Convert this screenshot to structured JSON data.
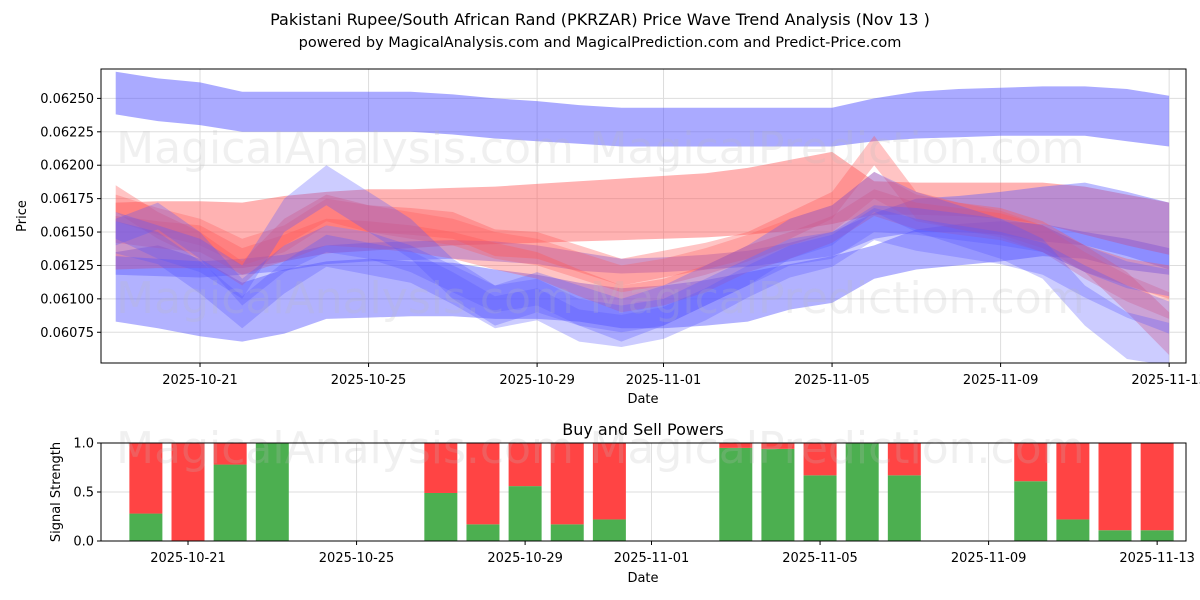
{
  "title": "Pakistani Rupee/South African Rand (PKRZAR) Price Wave Trend Analysis (Nov 13 )",
  "subtitle": "powered by MagicalAnalysis.com and MagicalPrediction.com and Predict-Price.com",
  "watermarks": [
    "MagicalAnalysis.com",
    "MagicalPrediction.com"
  ],
  "colors": {
    "blue": "#5555ff",
    "red": "#ff5555",
    "buy": "#4caf50",
    "sell": "#ff4444",
    "grid": "#dddddd"
  },
  "chart_data": [
    {
      "type": "area",
      "name": "price-wave-chart",
      "xlabel": "Date",
      "ylabel": "Price",
      "x": [
        "2025-10-19",
        "2025-10-20",
        "2025-10-21",
        "2025-10-22",
        "2025-10-23",
        "2025-10-24",
        "2025-10-25",
        "2025-10-26",
        "2025-10-27",
        "2025-10-28",
        "2025-10-29",
        "2025-10-30",
        "2025-10-31",
        "2025-11-01",
        "2025-11-02",
        "2025-11-03",
        "2025-11-04",
        "2025-11-05",
        "2025-11-06",
        "2025-11-07",
        "2025-11-08",
        "2025-11-09",
        "2025-11-10",
        "2025-11-11",
        "2025-11-12",
        "2025-11-13"
      ],
      "xtick_labels": [
        "2025-10-21",
        "2025-10-25",
        "2025-10-29",
        "2025-11-01",
        "2025-11-05",
        "2025-11-09",
        "2025-11-13"
      ],
      "ytick_labels": [
        "0.06075",
        "0.06100",
        "0.06125",
        "0.06150",
        "0.06175",
        "0.06200",
        "0.06225",
        "0.06250"
      ],
      "ylim": [
        0.06052,
        0.06272
      ],
      "x_range_days": [
        -0.35,
        25.4
      ],
      "series": [
        {
          "name": "top-band",
          "color": "blue",
          "opacity": 0.5,
          "upper": [
            0.0627,
            0.06265,
            0.06262,
            0.06255,
            0.06255,
            0.06255,
            0.06255,
            0.06255,
            0.06253,
            0.0625,
            0.06248,
            0.06245,
            0.06243,
            0.06243,
            0.06243,
            0.06243,
            0.06243,
            0.06243,
            0.0625,
            0.06255,
            0.06257,
            0.06258,
            0.06259,
            0.06259,
            0.06257,
            0.06252
          ],
          "lower": [
            0.06238,
            0.06233,
            0.0623,
            0.06225,
            0.06225,
            0.06225,
            0.06225,
            0.06225,
            0.06223,
            0.0622,
            0.06218,
            0.06216,
            0.06214,
            0.06214,
            0.06214,
            0.06214,
            0.06214,
            0.06214,
            0.06218,
            0.0622,
            0.06221,
            0.06222,
            0.06222,
            0.06222,
            0.06218,
            0.06214
          ]
        },
        {
          "name": "wide-lower-band",
          "color": "blue",
          "opacity": 0.45,
          "upper": [
            0.06135,
            0.0614,
            0.0613,
            0.06112,
            0.06122,
            0.06128,
            0.0613,
            0.06128,
            0.06127,
            0.06122,
            0.06118,
            0.06112,
            0.06108,
            0.0611,
            0.06114,
            0.0612,
            0.06126,
            0.06132,
            0.0614,
            0.06152,
            0.06156,
            0.06158,
            0.06156,
            0.0615,
            0.06145,
            0.06138
          ],
          "lower": [
            0.06083,
            0.06078,
            0.06072,
            0.06068,
            0.06074,
            0.06085,
            0.06086,
            0.06087,
            0.06087,
            0.06085,
            0.06085,
            0.06083,
            0.06078,
            0.06078,
            0.0608,
            0.06083,
            0.06092,
            0.06097,
            0.06115,
            0.06122,
            0.06125,
            0.06128,
            0.06132,
            0.0613,
            0.06122,
            0.06118
          ]
        },
        {
          "name": "wide-red-band",
          "color": "red",
          "opacity": 0.45,
          "upper": [
            0.06172,
            0.06173,
            0.06173,
            0.06172,
            0.06177,
            0.0618,
            0.06182,
            0.06182,
            0.06183,
            0.06184,
            0.06186,
            0.06188,
            0.0619,
            0.06192,
            0.06194,
            0.06198,
            0.06204,
            0.0621,
            0.06188,
            0.06187,
            0.06187,
            0.06187,
            0.06187,
            0.06184,
            0.06178,
            0.06172
          ],
          "lower": [
            0.06122,
            0.06123,
            0.06123,
            0.06123,
            0.06128,
            0.06134,
            0.06136,
            0.06138,
            0.0614,
            0.06141,
            0.06142,
            0.06143,
            0.06144,
            0.06145,
            0.06146,
            0.06148,
            0.06151,
            0.06156,
            0.06163,
            0.06163,
            0.06162,
            0.0616,
            0.06156,
            0.06148,
            0.0614,
            0.06133
          ]
        },
        {
          "name": "purple-trend-band",
          "color": "blue",
          "opacity": 0.4,
          "upper": [
            0.06132,
            0.0613,
            0.06128,
            0.0613,
            0.06133,
            0.0614,
            0.06142,
            0.06143,
            0.06144,
            0.06143,
            0.0614,
            0.06135,
            0.0613,
            0.06131,
            0.06133,
            0.06136,
            0.06142,
            0.0615,
            0.06164,
            0.06175,
            0.06177,
            0.0618,
            0.06184,
            0.06187,
            0.0618,
            0.06172
          ],
          "lower": [
            0.06118,
            0.06117,
            0.06116,
            0.06118,
            0.06121,
            0.06126,
            0.06128,
            0.06129,
            0.0613,
            0.06128,
            0.06126,
            0.06121,
            0.06119,
            0.0612,
            0.06122,
            0.06124,
            0.06128,
            0.06132,
            0.06145,
            0.0615,
            0.0615,
            0.06148,
            0.06143,
            0.0614,
            0.06132,
            0.06122
          ]
        },
        {
          "name": "red-wave-1",
          "color": "red",
          "opacity": 0.35,
          "upper": [
            0.06185,
            0.06165,
            0.0615,
            0.06128,
            0.0616,
            0.06178,
            0.0617,
            0.06168,
            0.06165,
            0.06152,
            0.0615,
            0.0614,
            0.0613,
            0.06136,
            0.06142,
            0.0615,
            0.06165,
            0.0618,
            0.06222,
            0.0618,
            0.06172,
            0.06168,
            0.06158,
            0.0614,
            0.0612,
            0.0609
          ],
          "lower": [
            0.06165,
            0.06145,
            0.0613,
            0.0611,
            0.0614,
            0.06158,
            0.0615,
            0.06148,
            0.06145,
            0.06132,
            0.0613,
            0.0612,
            0.0611,
            0.06116,
            0.06122,
            0.0613,
            0.06145,
            0.0616,
            0.062,
            0.0616,
            0.06152,
            0.06148,
            0.06138,
            0.0612,
            0.0609,
            0.06058
          ]
        },
        {
          "name": "red-wave-2",
          "color": "red",
          "opacity": 0.35,
          "upper": [
            0.06162,
            0.06158,
            0.06155,
            0.06138,
            0.06148,
            0.0616,
            0.06158,
            0.06155,
            0.0615,
            0.06142,
            0.06135,
            0.06122,
            0.0611,
            0.06115,
            0.06125,
            0.0614,
            0.0615,
            0.06162,
            0.06182,
            0.06172,
            0.06168,
            0.06164,
            0.06155,
            0.0614,
            0.0613,
            0.06125
          ],
          "lower": [
            0.06142,
            0.06138,
            0.06135,
            0.06118,
            0.06128,
            0.0614,
            0.06138,
            0.06135,
            0.0613,
            0.06122,
            0.06115,
            0.06102,
            0.0609,
            0.06095,
            0.06105,
            0.0612,
            0.0613,
            0.06142,
            0.06162,
            0.06152,
            0.06148,
            0.06144,
            0.06135,
            0.0612,
            0.0611,
            0.061
          ]
        },
        {
          "name": "red-wave-3",
          "color": "red",
          "opacity": 0.3,
          "upper": [
            0.06178,
            0.06168,
            0.0616,
            0.06145,
            0.06155,
            0.06175,
            0.0617,
            0.06165,
            0.0616,
            0.0615,
            0.06145,
            0.06135,
            0.06125,
            0.0613,
            0.06138,
            0.06148,
            0.0616,
            0.0617,
            0.06195,
            0.06178,
            0.06172,
            0.06166,
            0.06155,
            0.06135,
            0.06118,
            0.06105
          ],
          "lower": [
            0.06158,
            0.06148,
            0.0614,
            0.06125,
            0.06135,
            0.06155,
            0.0615,
            0.06145,
            0.0614,
            0.0613,
            0.06125,
            0.06115,
            0.06105,
            0.0611,
            0.06118,
            0.06128,
            0.0614,
            0.0615,
            0.06175,
            0.06158,
            0.06152,
            0.06146,
            0.06135,
            0.06115,
            0.06098,
            0.06085
          ]
        },
        {
          "name": "blue-wave-1",
          "color": "blue",
          "opacity": 0.3,
          "upper": [
            0.06165,
            0.06155,
            0.06145,
            0.06125,
            0.06175,
            0.062,
            0.0618,
            0.0616,
            0.0613,
            0.0611,
            0.0612,
            0.0611,
            0.061,
            0.0611,
            0.06125,
            0.0614,
            0.0616,
            0.0617,
            0.06195,
            0.0618,
            0.0617,
            0.0616,
            0.06145,
            0.0611,
            0.0609,
            0.06082
          ],
          "lower": [
            0.06145,
            0.0613,
            0.0612,
            0.061,
            0.0615,
            0.0617,
            0.0615,
            0.0613,
            0.061,
            0.0608,
            0.0609,
            0.0608,
            0.06068,
            0.0608,
            0.06095,
            0.0611,
            0.0613,
            0.0614,
            0.06165,
            0.0615,
            0.0614,
            0.0613,
            0.06115,
            0.0608,
            0.06055,
            0.0605
          ]
        },
        {
          "name": "blue-wave-2",
          "color": "blue",
          "opacity": 0.3,
          "upper": [
            0.0616,
            0.06172,
            0.0615,
            0.06115,
            0.0614,
            0.06155,
            0.0615,
            0.0614,
            0.06125,
            0.0611,
            0.06115,
            0.061,
            0.06095,
            0.061,
            0.06115,
            0.0613,
            0.06145,
            0.0615,
            0.0617,
            0.06168,
            0.06164,
            0.0616,
            0.06155,
            0.0614,
            0.06128,
            0.06122
          ],
          "lower": [
            0.0614,
            0.06152,
            0.0613,
            0.06095,
            0.0612,
            0.06135,
            0.0613,
            0.0612,
            0.06105,
            0.0609,
            0.06095,
            0.0608,
            0.06075,
            0.0608,
            0.06095,
            0.0611,
            0.06125,
            0.0613,
            0.0615,
            0.06148,
            0.06144,
            0.0614,
            0.06135,
            0.0612,
            0.06108,
            0.06102
          ]
        },
        {
          "name": "blue-wave-3",
          "color": "blue",
          "opacity": 0.3,
          "upper": [
            0.06158,
            0.0615,
            0.06128,
            0.06102,
            0.06128,
            0.06148,
            0.06142,
            0.06136,
            0.0612,
            0.06102,
            0.06108,
            0.06092,
            0.06088,
            0.06094,
            0.06108,
            0.06125,
            0.0614,
            0.06148,
            0.06168,
            0.0616,
            0.06155,
            0.0615,
            0.06142,
            0.06125,
            0.0611,
            0.06098
          ],
          "lower": [
            0.06134,
            0.06126,
            0.06104,
            0.06078,
            0.06104,
            0.06124,
            0.06118,
            0.06112,
            0.06096,
            0.06078,
            0.06084,
            0.06068,
            0.06064,
            0.0607,
            0.06084,
            0.06101,
            0.06116,
            0.06124,
            0.06144,
            0.06136,
            0.06131,
            0.06126,
            0.06118,
            0.06101,
            0.06086,
            0.06074
          ]
        }
      ]
    },
    {
      "type": "bar",
      "name": "buy-sell-power-chart",
      "title": "Buy and Sell Powers",
      "xlabel": "Date",
      "ylabel": "Signal Strength",
      "ylim": [
        0,
        1
      ],
      "ytick_labels": [
        "0.0",
        "0.5",
        "1.0"
      ],
      "xtick_labels": [
        "2025-10-21",
        "2025-10-25",
        "2025-10-29",
        "2025-11-01",
        "2025-11-05",
        "2025-11-09",
        "2025-11-13"
      ],
      "categories": [
        "2025-10-20",
        "2025-10-21",
        "2025-10-22",
        "2025-10-23",
        "2025-10-27",
        "2025-10-28",
        "2025-10-29",
        "2025-10-30",
        "2025-10-31",
        "2025-11-03",
        "2025-11-04",
        "2025-11-05",
        "2025-11-06",
        "2025-11-07",
        "2025-11-10",
        "2025-11-11",
        "2025-11-12",
        "2025-11-13"
      ],
      "series": [
        {
          "name": "Buy",
          "color": "buy",
          "values": [
            0.28,
            0.0,
            0.78,
            1.0,
            0.49,
            0.17,
            0.56,
            0.17,
            0.22,
            0.95,
            0.94,
            0.67,
            1.0,
            0.67,
            0.61,
            0.22,
            0.11,
            0.11
          ]
        },
        {
          "name": "Sell",
          "color": "sell",
          "values": [
            0.72,
            1.0,
            0.22,
            0.0,
            0.51,
            0.83,
            0.44,
            0.83,
            0.78,
            0.05,
            0.06,
            0.33,
            0.0,
            0.33,
            0.39,
            0.78,
            0.89,
            0.89
          ]
        }
      ]
    }
  ]
}
